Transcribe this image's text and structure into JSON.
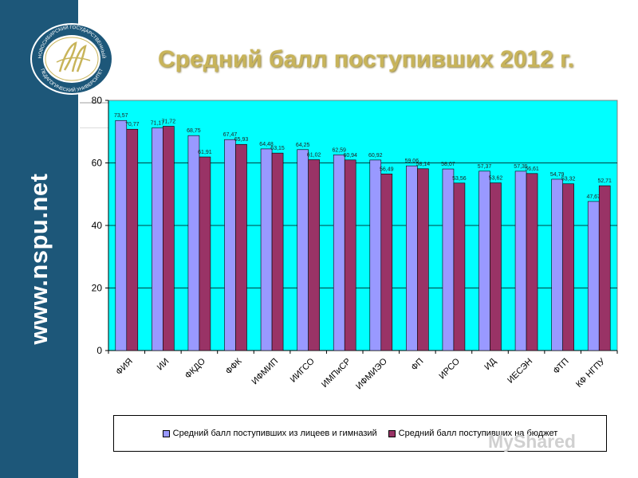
{
  "sidebar": {
    "site_url": "www.nspu.net",
    "logo_text_top": "НОВОСИБИРСКИЙ ГОСУДАРСТВЕННЫЙ",
    "logo_text_bottom": "ПЕДАГОГИЧЕСКИЙ УНИВЕРСИТЕТ"
  },
  "slide": {
    "title": "Средний балл поступивших  2012 г."
  },
  "colors": {
    "sidebar": "#1d5779",
    "plot_bg": "#00ffff",
    "series1": "#9999ff",
    "series2": "#993366",
    "title": "#c8b45a"
  },
  "watermark": {
    "text": "MyShared"
  },
  "chart_data": {
    "type": "bar",
    "categories": [
      "ФИЯ",
      "ИИ",
      "ФКДО",
      "ФФК",
      "ИФМИП",
      "ИИГСО",
      "ИМПиСР",
      "ИФМИЭО",
      "ФП",
      "ИРСО",
      "ИД",
      "ИЕСЭН",
      "ФТП",
      "КФ НГПУ"
    ],
    "series": [
      {
        "name": "Средний балл поступивших из лицеев и гимназий",
        "values": [
          73.57,
          71.17,
          68.75,
          67.47,
          64.48,
          64.25,
          62.59,
          60.92,
          59.06,
          58.07,
          57.37,
          57.35,
          54.79,
          47.67
        ]
      },
      {
        "name": "Средний балл поступивших на бюджет",
        "values": [
          70.77,
          71.72,
          61.91,
          65.93,
          63.15,
          61.02,
          60.94,
          56.49,
          58.14,
          53.56,
          53.62,
          56.61,
          53.32,
          52.71
        ]
      }
    ],
    "data_labels": [
      [
        "73,57",
        "71,17",
        "68,75",
        "67,47",
        "64,48",
        "64,25",
        "62,59",
        "60,92",
        "59,06",
        "58,07",
        "57,37",
        "57,35",
        "54,79",
        "47,67"
      ],
      [
        "70,77",
        "71,72",
        "61,91",
        "65,93",
        "63,15",
        "61,02",
        "60,94",
        "56,49",
        "58,14",
        "53,56",
        "53,62",
        "56,61",
        "53,32",
        "52,71"
      ]
    ],
    "ylim": [
      0,
      80
    ],
    "yticks": [
      "0",
      "20",
      "40",
      "60",
      "80"
    ],
    "grid": true,
    "legend_position": "bottom"
  }
}
